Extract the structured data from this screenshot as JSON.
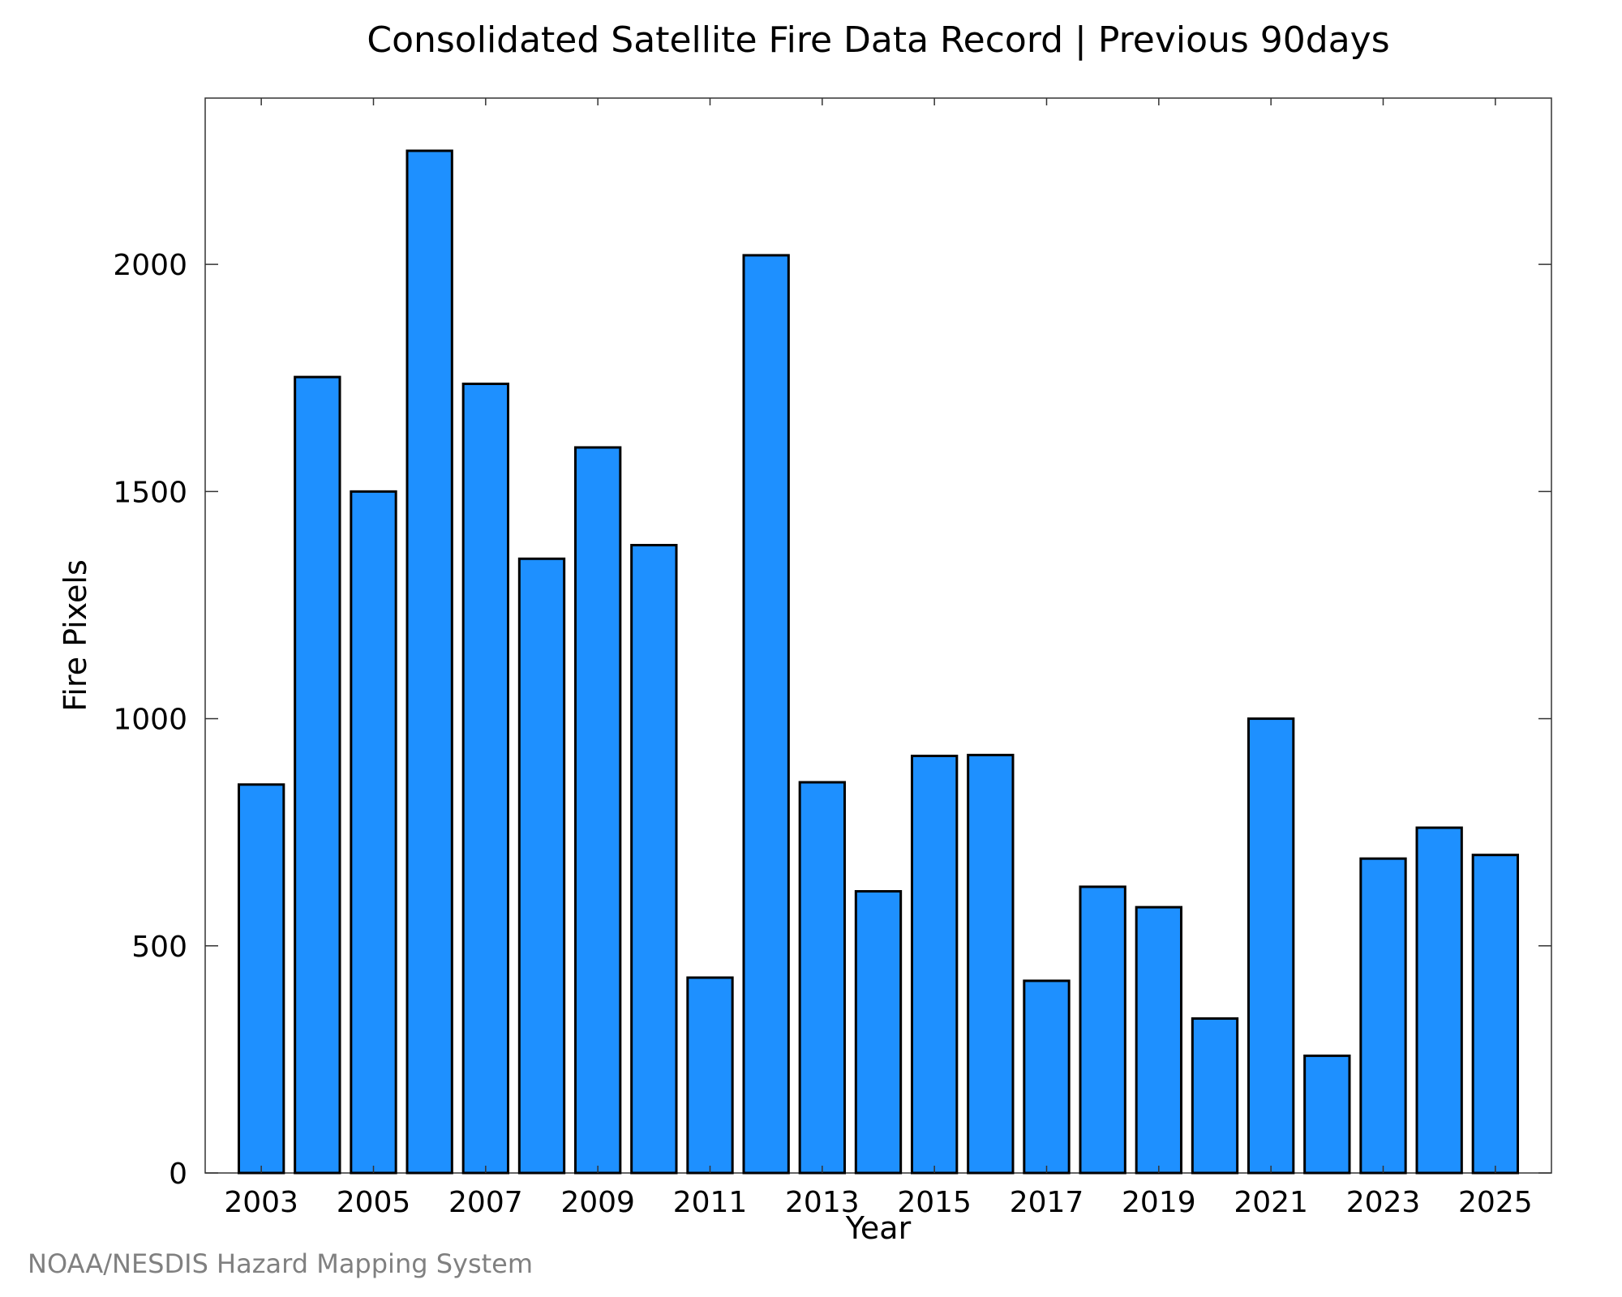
{
  "chart_data": {
    "type": "bar",
    "title": "Consolidated Satellite Fire Data Record | Previous 90days",
    "xlabel": "Year",
    "ylabel": "Fire Pixels",
    "credit": "NOAA/NESDIS Hazard Mapping System",
    "categories": [
      2003,
      2004,
      2005,
      2006,
      2007,
      2008,
      2009,
      2010,
      2011,
      2012,
      2013,
      2014,
      2015,
      2016,
      2017,
      2018,
      2019,
      2020,
      2021,
      2022,
      2023,
      2024,
      2025
    ],
    "values": [
      855,
      1752,
      1500,
      2250,
      1737,
      1352,
      1597,
      1382,
      430,
      2020,
      860,
      620,
      918,
      920,
      423,
      630,
      585,
      340,
      1000,
      258,
      692,
      760,
      700
    ],
    "x_tick_labels": [
      "2003",
      "2005",
      "2007",
      "2009",
      "2011",
      "2013",
      "2015",
      "2017",
      "2019",
      "2021",
      "2023",
      "2025"
    ],
    "y_tick_labels": [
      "0",
      "500",
      "1000",
      "1500",
      "2000"
    ],
    "y_ticks": [
      0,
      500,
      1000,
      1500,
      2000
    ],
    "xlim": [
      2002,
      2026
    ],
    "ylim": [
      0,
      2366
    ],
    "grid": false,
    "legend": "none",
    "bar_color": "#1e90ff"
  }
}
